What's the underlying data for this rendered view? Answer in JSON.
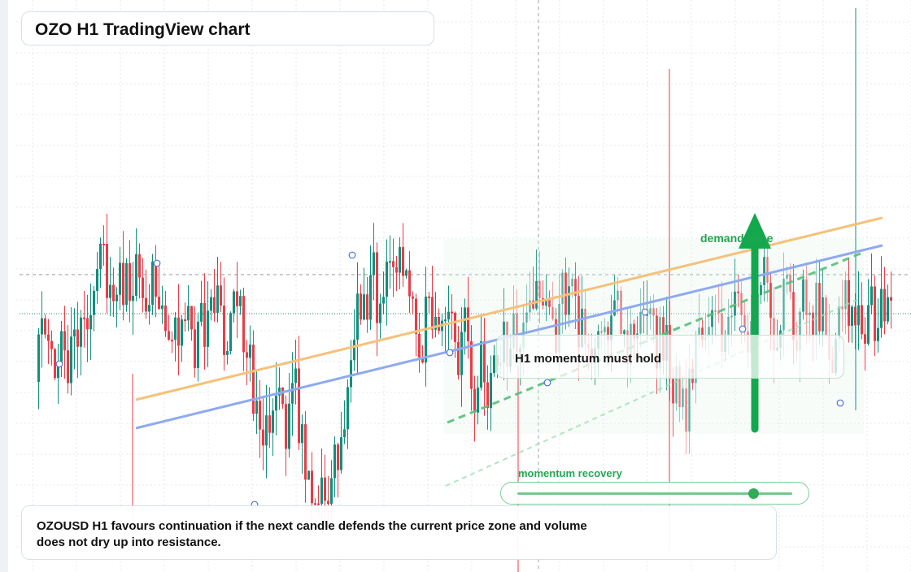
{
  "title": "OZO H1 TradingView chart",
  "chart_data": {
    "type": "candlestick",
    "series_colors": {
      "bull": "#128f7b",
      "bear": "#ea3b46"
    },
    "candles": [],
    "trendlines": [
      {
        "color": "#f4c27a"
      },
      {
        "color": "#8eaaf0"
      }
    ]
  },
  "annotations": {
    "demand_label": "demand zone",
    "momentum_card": "H1 momentum must hold",
    "recovery_label": "momentum recovery",
    "slider_level": 0.86
  },
  "summary": "OZOUSD H1 favours continuation if the next candle defends the current price zone and volume does not dry up into resistance."
}
